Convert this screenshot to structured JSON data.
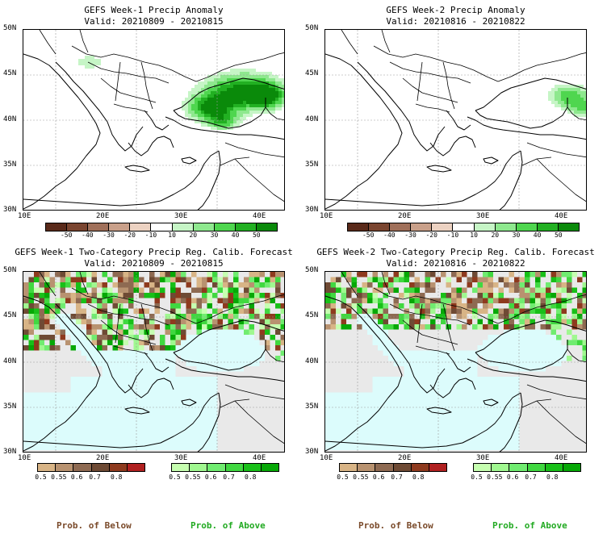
{
  "panels": [
    {
      "title_line1": "GEFS Week-1 Precip Anomaly",
      "title_line2": "Valid: 20210809 - 20210815"
    },
    {
      "title_line1": "GEFS Week-2 Precip Anomaly",
      "title_line2": "Valid: 20210816 - 20210822"
    },
    {
      "title_line1": "GEFS Week-1 Two-Category Precip Reg. Calib. Forecast",
      "title_line2": "Valid: 20210809 - 20210815"
    },
    {
      "title_line1": "GEFS Week-2 Two-Category Precip Reg. Calib. Forecast",
      "title_line2": "Valid: 20210816 - 20210822"
    }
  ],
  "lat_labels": [
    "50N",
    "45N",
    "40N",
    "35N",
    "30N"
  ],
  "lon_labels": [
    "10E",
    "20E",
    "30E",
    "40E"
  ],
  "anomaly_colorbar": {
    "labels": [
      "-50",
      "-40",
      "-30",
      "-20",
      "-10",
      "10",
      "20",
      "30",
      "40",
      "50"
    ],
    "colors": [
      "#5a2a1a",
      "#7a4530",
      "#a0705a",
      "#c9a08a",
      "#ecd2c2",
      "#ffffff",
      "#c6f5c6",
      "#8ee88e",
      "#4fd64f",
      "#22b022",
      "#0a8a0a"
    ]
  },
  "below_colorbar": {
    "labels": [
      "0.5",
      "0.55",
      "0.6",
      "0.7",
      "0.8"
    ],
    "colors": [
      "#d8b486",
      "#b89270",
      "#8e6a52",
      "#6e4a34",
      "#8e3a1e",
      "#b02020"
    ]
  },
  "above_colorbar": {
    "labels": [
      "0.5",
      "0.55",
      "0.6",
      "0.7",
      "0.8"
    ],
    "colors": [
      "#c6ffb0",
      "#a0f890",
      "#70ec70",
      "#40d840",
      "#18c018",
      "#06a806"
    ]
  },
  "footer": {
    "below_label": "Prob. of Below",
    "above_label": "Prob. of Above"
  },
  "colors": {
    "sea_prob": "#dcfcfc",
    "land_noskill": "#e9e9e9",
    "below_text": "#7a4a2a",
    "above_text": "#22aa22"
  }
}
